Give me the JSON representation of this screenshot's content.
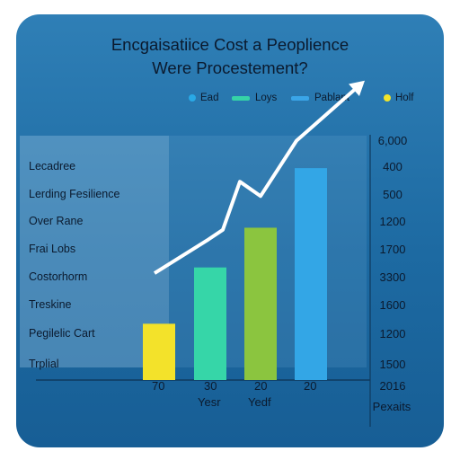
{
  "chart_data": {
    "type": "bar",
    "title_line1": "Encgaisatiice Cost a Peoplience",
    "title_line2": "Were Procestement?",
    "legend": [
      {
        "label": "Ead",
        "color": "#29a9e6",
        "shape": "dot"
      },
      {
        "label": "Loys",
        "color": "#35d3a7",
        "shape": "bar"
      },
      {
        "label": "Pablant",
        "color": "#3aa5e8",
        "shape": "bar"
      },
      {
        "label": "Holf",
        "color": "#f1e52a",
        "shape": "dot"
      }
    ],
    "row_labels": [
      "Lecadree",
      "Lerding Fesilience",
      "Over Rane",
      "Frai Lobs",
      "Costorhorm",
      "Treskine",
      "Pegilelic Cart",
      "Trplial"
    ],
    "right_values": [
      "6,000",
      "400",
      "500",
      "1200",
      "1700",
      "3300",
      "1600",
      "1200",
      "1500"
    ],
    "categories": [
      "70",
      "30",
      "20",
      "20"
    ],
    "x_sublabels": [
      "Yesr",
      "Yedf"
    ],
    "series": [
      {
        "values": [
          0.17,
          0.34,
          0.46,
          0.64
        ],
        "colors": [
          "#f3e22a",
          "#36d6a8",
          "#8bc53f",
          "#33a6e6"
        ]
      }
    ],
    "trend_line": [
      0.22,
      0.36,
      0.4,
      0.6,
      0.54,
      0.77,
      1.0
    ],
    "ylim": [
      0,
      1
    ],
    "right_footer_value": "2016",
    "right_footer_label": "Pexaits"
  }
}
